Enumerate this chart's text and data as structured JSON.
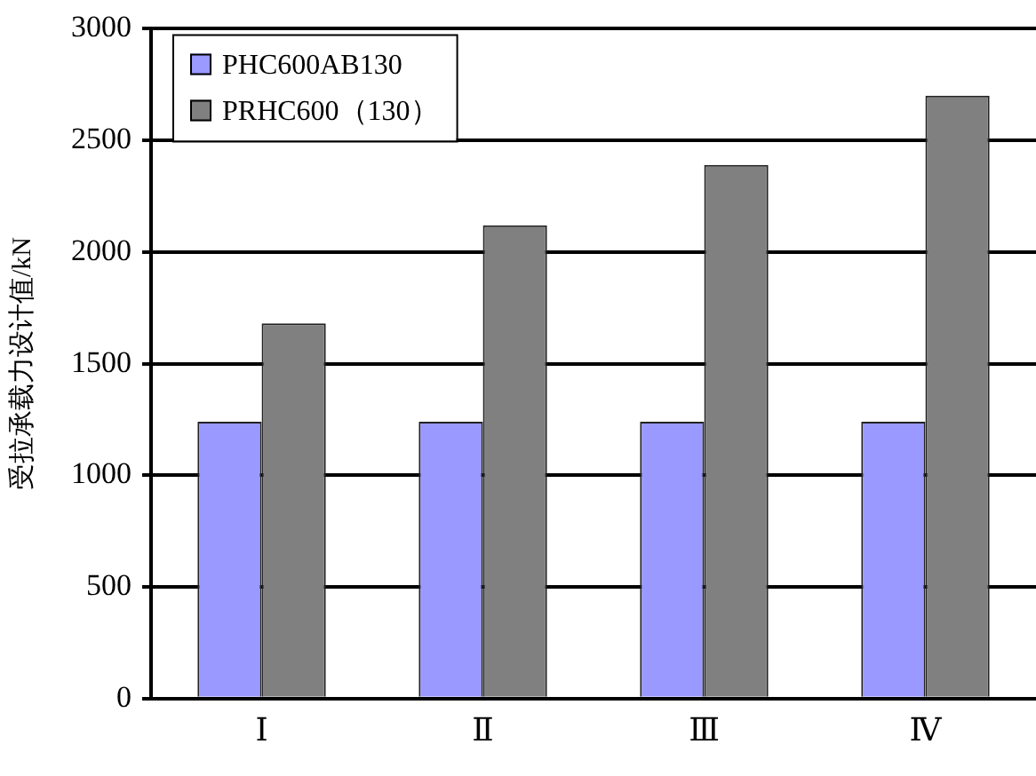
{
  "chart_data": {
    "type": "bar",
    "ylabel": "受拉承载力设计值/kN",
    "categories": [
      "Ⅰ",
      "Ⅱ",
      "Ⅲ",
      "Ⅳ"
    ],
    "series": [
      {
        "name": "PHC600AB130",
        "color": "#9999ff",
        "values": [
          1240,
          1240,
          1240,
          1240
        ]
      },
      {
        "name": "PRHC600（130）",
        "color": "#808080",
        "values": [
          1680,
          2120,
          2390,
          2700
        ]
      }
    ],
    "ylim": [
      0,
      3000
    ],
    "yticks": [
      0,
      500,
      1000,
      1500,
      2000,
      2500,
      3000
    ],
    "grid": "y",
    "legend": "top left"
  }
}
